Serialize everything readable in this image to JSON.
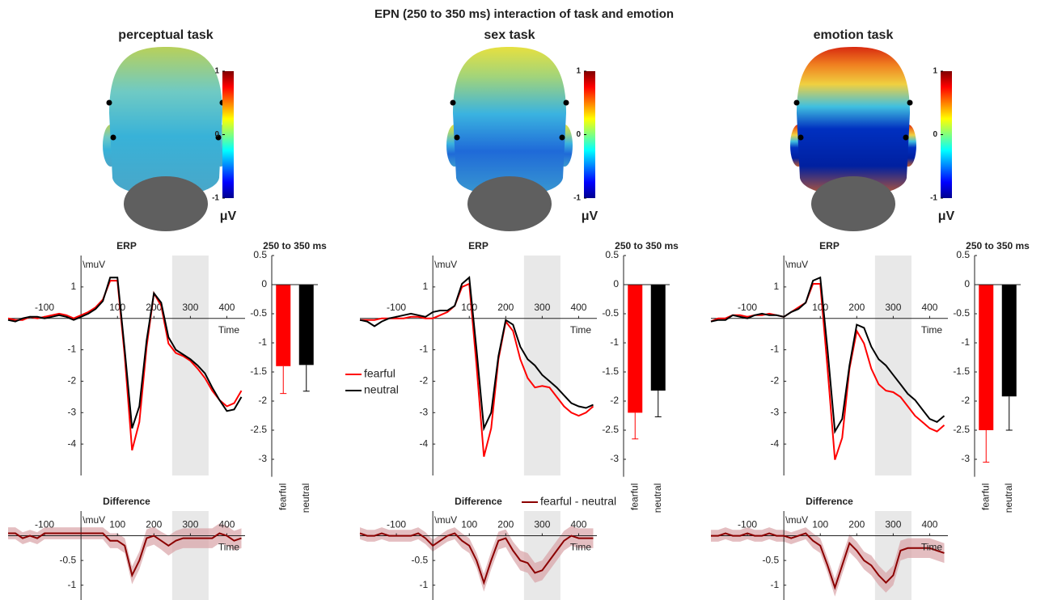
{
  "title": "EPN (250 to 350 ms) interaction of task and emotion",
  "chart_data": [
    {
      "type": "topomap",
      "title": "perceptual task",
      "clim": [
        -1,
        1
      ],
      "colorbar_ticks": [
        1,
        0,
        -1
      ],
      "colorbar_label": "μV"
    },
    {
      "type": "line",
      "title": "ERP",
      "ylabel": "\\muV",
      "xlabel": "Time",
      "xlim": [
        -200,
        450
      ],
      "ylim": [
        -5,
        2
      ],
      "xticks": [
        -100,
        100,
        200,
        300,
        400
      ],
      "yticks": [
        1,
        -1,
        -2,
        -3,
        -4
      ],
      "highlight_x": [
        250,
        350
      ],
      "x": [
        -200,
        -180,
        -160,
        -140,
        -120,
        -100,
        -80,
        -60,
        -40,
        -20,
        0,
        20,
        40,
        60,
        80,
        100,
        120,
        140,
        160,
        180,
        200,
        220,
        240,
        260,
        280,
        300,
        320,
        340,
        360,
        380,
        400,
        420,
        440
      ],
      "series": [
        {
          "color": "#ff0000",
          "values": [
            0,
            -0.05,
            -0.05,
            0.05,
            0,
            0.05,
            0.1,
            0.15,
            0.1,
            0,
            0.1,
            0.2,
            0.35,
            0.6,
            1.2,
            1.2,
            -1.2,
            -4.2,
            -3.3,
            -0.9,
            0.8,
            0.4,
            -0.8,
            -1.1,
            -1.2,
            -1.35,
            -1.6,
            -1.9,
            -2.3,
            -2.6,
            -2.8,
            -2.7,
            -2.3
          ]
        },
        {
          "color": "#000000",
          "values": [
            -0.05,
            -0.1,
            0,
            0.05,
            0.05,
            0,
            0.05,
            0.1,
            0.05,
            -0.05,
            0.05,
            0.15,
            0.3,
            0.55,
            1.3,
            1.3,
            -1.0,
            -3.5,
            -2.8,
            -0.7,
            0.8,
            0.5,
            -0.6,
            -1.0,
            -1.15,
            -1.3,
            -1.5,
            -1.75,
            -2.2,
            -2.6,
            -2.95,
            -2.9,
            -2.5
          ]
        }
      ]
    },
    {
      "type": "bar",
      "title": "250 to 350 ms",
      "categories": [
        "fearful",
        "neutral"
      ],
      "values": [
        -1.4,
        -1.38
      ],
      "errors": [
        0.47,
        0.45
      ],
      "colors": [
        "#ff0000",
        "#000000"
      ],
      "ylim": [
        -3.3,
        0.5
      ],
      "yticks": [
        0.5,
        0,
        -0.5,
        -1,
        -1.5,
        -2,
        -2.5,
        -3
      ]
    },
    {
      "type": "line",
      "title": "Difference",
      "ylabel": "\\muV",
      "xlabel": "Time",
      "xlim": [
        -200,
        450
      ],
      "ylim": [
        -1.3,
        0.5
      ],
      "xticks": [
        -100,
        100,
        200,
        300,
        400
      ],
      "yticks": [
        -0.5,
        -1
      ],
      "highlight_x": [
        250,
        350
      ],
      "band_color": "#d9a3a6",
      "x": [
        -200,
        -180,
        -160,
        -140,
        -120,
        -100,
        -80,
        -60,
        -40,
        -20,
        0,
        20,
        40,
        60,
        80,
        100,
        120,
        140,
        160,
        180,
        200,
        220,
        240,
        260,
        280,
        300,
        320,
        340,
        360,
        380,
        400,
        420,
        440
      ],
      "series": [
        {
          "color": "#8b0000",
          "values": [
            0.05,
            0.05,
            -0.05,
            0,
            -0.05,
            0.05,
            0.05,
            0.05,
            0.05,
            0.05,
            0.05,
            0.05,
            0.05,
            0.05,
            -0.1,
            -0.1,
            -0.2,
            -0.8,
            -0.5,
            -0.05,
            0,
            -0.1,
            -0.2,
            -0.1,
            -0.05,
            -0.05,
            -0.05,
            -0.05,
            -0.05,
            0.05,
            0,
            -0.1,
            -0.05
          ],
          "errors": [
            0.12,
            0.12,
            0.12,
            0.12,
            0.12,
            0.12,
            0.12,
            0.12,
            0.12,
            0.12,
            0.12,
            0.12,
            0.12,
            0.12,
            0.15,
            0.15,
            0.15,
            0.18,
            0.18,
            0.18,
            0.18,
            0.18,
            0.2,
            0.2,
            0.2,
            0.2,
            0.2,
            0.2,
            0.2,
            0.2,
            0.2,
            0.2,
            0.2
          ]
        }
      ]
    },
    {
      "type": "topomap",
      "title": "sex task",
      "clim": [
        -1,
        1
      ],
      "colorbar_ticks": [
        1,
        0,
        -1
      ],
      "colorbar_label": "μV"
    },
    {
      "type": "line",
      "title": "ERP",
      "ylabel": "\\muV",
      "xlabel": "Time",
      "xlim": [
        -200,
        450
      ],
      "ylim": [
        -5,
        2
      ],
      "xticks": [
        -100,
        100,
        200,
        300,
        400
      ],
      "yticks": [
        1,
        -1,
        -2,
        -3,
        -4
      ],
      "highlight_x": [
        250,
        350
      ],
      "legend": "left",
      "x": [
        -200,
        -180,
        -160,
        -140,
        -120,
        -100,
        -80,
        -60,
        -40,
        -20,
        0,
        20,
        40,
        60,
        80,
        100,
        120,
        140,
        160,
        180,
        200,
        220,
        240,
        260,
        280,
        300,
        320,
        340,
        360,
        380,
        400,
        420,
        440
      ],
      "series": [
        {
          "name": "fearful",
          "color": "#ff0000",
          "values": [
            -0.05,
            -0.05,
            -0.05,
            0,
            0,
            0,
            0,
            0.05,
            0.05,
            0,
            0,
            0.1,
            0.2,
            0.4,
            1.0,
            1.1,
            -1.5,
            -4.4,
            -3.5,
            -1.3,
            -0.1,
            -0.4,
            -1.3,
            -1.9,
            -2.2,
            -2.15,
            -2.2,
            -2.5,
            -2.8,
            -3.0,
            -3.1,
            -3.0,
            -2.8
          ]
        },
        {
          "name": "neutral",
          "color": "#000000",
          "values": [
            -0.05,
            -0.1,
            -0.25,
            -0.1,
            0,
            0.05,
            0.1,
            0.15,
            0.1,
            0.05,
            0.2,
            0.25,
            0.25,
            0.4,
            1.1,
            1.3,
            -1.0,
            -3.5,
            -3.0,
            -1.2,
            -0.05,
            -0.2,
            -0.9,
            -1.3,
            -1.5,
            -1.8,
            -2.0,
            -2.2,
            -2.45,
            -2.7,
            -2.8,
            -2.85,
            -2.75
          ]
        }
      ]
    },
    {
      "type": "bar",
      "title": "250 to 350 ms",
      "categories": [
        "fearful",
        "neutral"
      ],
      "values": [
        -2.2,
        -1.82
      ],
      "errors": [
        0.45,
        0.45
      ],
      "colors": [
        "#ff0000",
        "#000000"
      ],
      "ylim": [
        -3.3,
        0.5
      ],
      "yticks": [
        0.5,
        0,
        -0.5,
        -1,
        -1.5,
        -2,
        -2.5,
        -3
      ]
    },
    {
      "type": "line",
      "title": "Difference",
      "ylabel": "\\muV",
      "xlabel": "Time",
      "xlim": [
        -200,
        450
      ],
      "ylim": [
        -1.3,
        0.5
      ],
      "xticks": [
        -100,
        100,
        200,
        300,
        400
      ],
      "yticks": [
        -0.5,
        -1
      ],
      "highlight_x": [
        250,
        350
      ],
      "band_color": "#d9a3a6",
      "legend": "upper right",
      "x": [
        -200,
        -180,
        -160,
        -140,
        -120,
        -100,
        -80,
        -60,
        -40,
        -20,
        0,
        20,
        40,
        60,
        80,
        100,
        120,
        140,
        160,
        180,
        200,
        220,
        240,
        260,
        280,
        300,
        320,
        340,
        360,
        380,
        400,
        420,
        440
      ],
      "series": [
        {
          "name": "fearful - neutral",
          "color": "#8b0000",
          "values": [
            0.05,
            0,
            0,
            0.05,
            0,
            0,
            0,
            0,
            0.05,
            -0.05,
            -0.2,
            -0.1,
            0,
            0.05,
            -0.1,
            -0.2,
            -0.5,
            -0.95,
            -0.5,
            -0.1,
            -0.05,
            -0.3,
            -0.5,
            -0.55,
            -0.75,
            -0.7,
            -0.5,
            -0.3,
            -0.1,
            0,
            -0.05,
            -0.05,
            -0.05
          ],
          "errors": [
            0.12,
            0.12,
            0.12,
            0.12,
            0.12,
            0.12,
            0.12,
            0.12,
            0.12,
            0.12,
            0.12,
            0.12,
            0.12,
            0.12,
            0.15,
            0.15,
            0.15,
            0.18,
            0.18,
            0.18,
            0.18,
            0.18,
            0.2,
            0.2,
            0.2,
            0.2,
            0.2,
            0.2,
            0.2,
            0.2,
            0.2,
            0.2,
            0.2
          ]
        }
      ]
    },
    {
      "type": "topomap",
      "title": "emotion task",
      "clim": [
        -1,
        1
      ],
      "colorbar_ticks": [
        1,
        0,
        -1
      ],
      "colorbar_label": "μV"
    },
    {
      "type": "line",
      "title": "ERP",
      "ylabel": "\\muV",
      "xlabel": "Time",
      "xlim": [
        -200,
        450
      ],
      "ylim": [
        -5,
        2
      ],
      "xticks": [
        -100,
        100,
        200,
        300,
        400
      ],
      "yticks": [
        1,
        -1,
        -2,
        -3,
        -4
      ],
      "highlight_x": [
        250,
        350
      ],
      "x": [
        -200,
        -180,
        -160,
        -140,
        -120,
        -100,
        -80,
        -60,
        -40,
        -20,
        0,
        20,
        40,
        60,
        80,
        100,
        120,
        140,
        160,
        180,
        200,
        220,
        240,
        260,
        280,
        300,
        320,
        340,
        360,
        380,
        400,
        420,
        440
      ],
      "series": [
        {
          "color": "#ff0000",
          "values": [
            -0.1,
            0,
            0,
            0.1,
            0.1,
            0.05,
            0.1,
            0.1,
            0.15,
            0.1,
            0.05,
            0.2,
            0.35,
            0.5,
            1.1,
            1.1,
            -1.6,
            -4.5,
            -3.8,
            -1.6,
            -0.4,
            -0.8,
            -1.6,
            -2.1,
            -2.3,
            -2.35,
            -2.5,
            -2.8,
            -3.1,
            -3.3,
            -3.5,
            -3.6,
            -3.4
          ]
        },
        {
          "color": "#000000",
          "values": [
            -0.1,
            -0.05,
            -0.05,
            0.1,
            0.05,
            0,
            0.1,
            0.15,
            0.1,
            0.1,
            0.05,
            0.2,
            0.3,
            0.5,
            1.2,
            1.3,
            -1.0,
            -3.6,
            -3.2,
            -1.5,
            -0.2,
            -0.3,
            -0.9,
            -1.3,
            -1.5,
            -1.8,
            -2.1,
            -2.4,
            -2.6,
            -2.9,
            -3.2,
            -3.3,
            -3.1
          ]
        }
      ]
    },
    {
      "type": "bar",
      "title": "250 to 350 ms",
      "categories": [
        "fearful",
        "neutral"
      ],
      "values": [
        -2.5,
        -1.92
      ],
      "errors": [
        0.55,
        0.58
      ],
      "colors": [
        "#ff0000",
        "#000000"
      ],
      "ylim": [
        -3.3,
        0.5
      ],
      "yticks": [
        0.5,
        0,
        -0.5,
        -1,
        -1.5,
        -2,
        -2.5,
        -3
      ]
    },
    {
      "type": "line",
      "title": "Difference",
      "ylabel": "\\muV",
      "xlabel": "Time",
      "xlim": [
        -200,
        450
      ],
      "ylim": [
        -1.3,
        0.5
      ],
      "xticks": [
        -100,
        100,
        200,
        300,
        400
      ],
      "yticks": [
        -0.5,
        -1
      ],
      "highlight_x": [
        250,
        350
      ],
      "band_color": "#d9a3a6",
      "x": [
        -200,
        -180,
        -160,
        -140,
        -120,
        -100,
        -80,
        -60,
        -40,
        -20,
        0,
        20,
        40,
        60,
        80,
        100,
        120,
        140,
        160,
        180,
        200,
        220,
        240,
        260,
        280,
        300,
        320,
        340,
        360,
        380,
        400,
        420,
        440
      ],
      "series": [
        {
          "color": "#8b0000",
          "values": [
            0,
            0,
            0.05,
            0,
            0,
            0.05,
            0,
            0,
            0.05,
            0,
            0,
            -0.05,
            0,
            0.05,
            -0.1,
            -0.2,
            -0.6,
            -1.05,
            -0.6,
            -0.15,
            -0.3,
            -0.5,
            -0.6,
            -0.8,
            -0.95,
            -0.8,
            -0.3,
            -0.25,
            -0.25,
            -0.25,
            -0.25,
            -0.3,
            -0.35
          ],
          "errors": [
            0.12,
            0.12,
            0.12,
            0.12,
            0.12,
            0.12,
            0.12,
            0.12,
            0.12,
            0.12,
            0.12,
            0.12,
            0.12,
            0.12,
            0.15,
            0.15,
            0.15,
            0.18,
            0.18,
            0.18,
            0.18,
            0.18,
            0.2,
            0.2,
            0.2,
            0.2,
            0.2,
            0.2,
            0.2,
            0.2,
            0.2,
            0.2,
            0.2
          ]
        }
      ]
    }
  ]
}
